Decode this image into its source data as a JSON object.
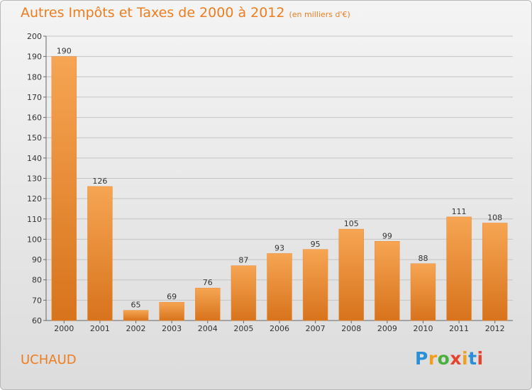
{
  "title": "Autres Impôts et Taxes de 2000 à 2012",
  "subtitle": "(en milliers d'€)",
  "commune": "UCHAUD",
  "logo": {
    "text": "Proxiti",
    "colors": [
      "#2a8fd6",
      "#f0a01e",
      "#4cae3d",
      "#e5432b",
      "#f0a01e",
      "#2a8fd6",
      "#e5432b"
    ]
  },
  "colors": {
    "bar_light": "#f6a553",
    "bar_dark": "#d8731c",
    "text_accent": "#ee7d1f"
  },
  "chart_data": {
    "type": "bar",
    "categories": [
      "2000",
      "2001",
      "2002",
      "2003",
      "2004",
      "2005",
      "2006",
      "2007",
      "2008",
      "2009",
      "2010",
      "2011",
      "2012"
    ],
    "values": [
      190,
      126,
      65,
      69,
      76,
      87,
      93,
      95,
      105,
      99,
      88,
      111,
      108
    ],
    "ylim": [
      60,
      200
    ],
    "yticks": [
      60,
      70,
      80,
      90,
      100,
      110,
      120,
      130,
      140,
      150,
      160,
      170,
      180,
      190,
      200
    ],
    "grid": true,
    "title": "Autres Impôts et Taxes de 2000 à 2012",
    "xlabel": "",
    "ylabel": ""
  }
}
